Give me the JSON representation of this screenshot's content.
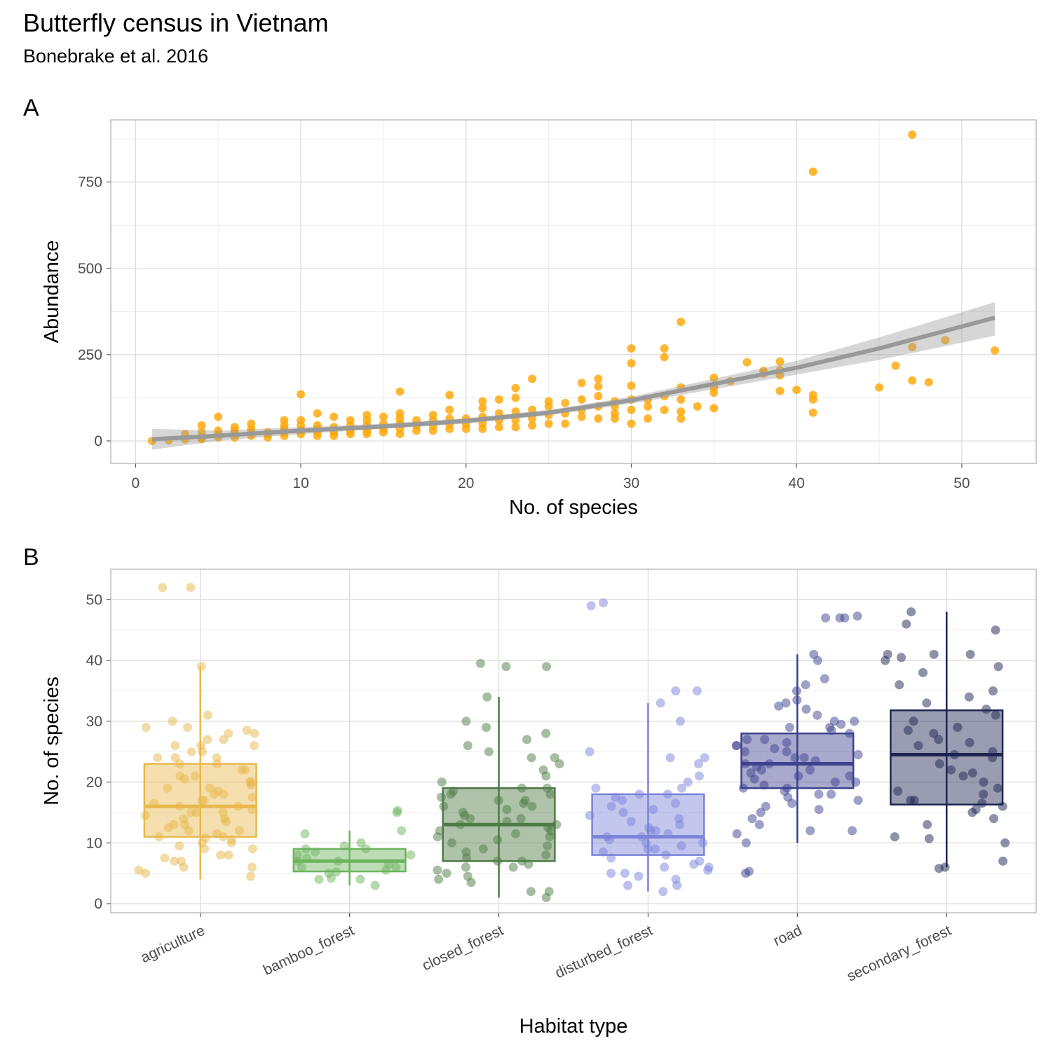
{
  "title": "Butterfly census in Vietnam",
  "subtitle": "Bonebrake et al. 2016",
  "chart_data": [
    {
      "panel": "A",
      "type": "scatter",
      "xlabel": "No. of species",
      "ylabel": "Abundance",
      "xlim": [
        -1.5,
        54.5
      ],
      "ylim": [
        -65,
        930
      ],
      "xticks": [
        0,
        10,
        20,
        30,
        40,
        50
      ],
      "yticks": [
        0,
        250,
        500,
        750
      ],
      "grid": true,
      "color": "#FFA500",
      "trend": {
        "type": "smooth",
        "x": [
          1,
          5,
          10,
          15,
          20,
          25,
          30,
          35,
          40,
          45,
          52
        ],
        "y": [
          5,
          15,
          30,
          42,
          58,
          82,
          118,
          165,
          212,
          268,
          357
        ],
        "ci_low": [
          -25,
          0,
          20,
          35,
          50,
          74,
          108,
          150,
          192,
          235,
          305
        ],
        "ci_high": [
          35,
          30,
          40,
          50,
          66,
          90,
          128,
          180,
          232,
          300,
          402
        ]
      },
      "points": [
        [
          1,
          0
        ],
        [
          2,
          2
        ],
        [
          3,
          5
        ],
        [
          3,
          20
        ],
        [
          4,
          5
        ],
        [
          4,
          10
        ],
        [
          4,
          25
        ],
        [
          4,
          45
        ],
        [
          5,
          10
        ],
        [
          5,
          20
        ],
        [
          5,
          30
        ],
        [
          5,
          70
        ],
        [
          6,
          10
        ],
        [
          6,
          20
        ],
        [
          6,
          30
        ],
        [
          6,
          40
        ],
        [
          7,
          15
        ],
        [
          7,
          25
        ],
        [
          7,
          35
        ],
        [
          7,
          50
        ],
        [
          8,
          10
        ],
        [
          8,
          20
        ],
        [
          8,
          25
        ],
        [
          9,
          15
        ],
        [
          9,
          25
        ],
        [
          9,
          35
        ],
        [
          9,
          45
        ],
        [
          9,
          60
        ],
        [
          10,
          20
        ],
        [
          10,
          30
        ],
        [
          10,
          45
        ],
        [
          10,
          60
        ],
        [
          10,
          135
        ],
        [
          11,
          15
        ],
        [
          11,
          25
        ],
        [
          11,
          35
        ],
        [
          11,
          45
        ],
        [
          11,
          80
        ],
        [
          12,
          15
        ],
        [
          12,
          25
        ],
        [
          12,
          40
        ],
        [
          12,
          70
        ],
        [
          13,
          20
        ],
        [
          13,
          30
        ],
        [
          13,
          45
        ],
        [
          13,
          60
        ],
        [
          14,
          20
        ],
        [
          14,
          30
        ],
        [
          14,
          45
        ],
        [
          14,
          60
        ],
        [
          14,
          75
        ],
        [
          15,
          25
        ],
        [
          15,
          35
        ],
        [
          15,
          50
        ],
        [
          15,
          70
        ],
        [
          16,
          20
        ],
        [
          16,
          35
        ],
        [
          16,
          50
        ],
        [
          16,
          65
        ],
        [
          16,
          80
        ],
        [
          16,
          143
        ],
        [
          17,
          30
        ],
        [
          17,
          45
        ],
        [
          17,
          60
        ],
        [
          18,
          30
        ],
        [
          18,
          45
        ],
        [
          18,
          60
        ],
        [
          18,
          75
        ],
        [
          19,
          35
        ],
        [
          19,
          50
        ],
        [
          19,
          65
        ],
        [
          19,
          90
        ],
        [
          19,
          133
        ],
        [
          20,
          35
        ],
        [
          20,
          50
        ],
        [
          20,
          65
        ],
        [
          21,
          35
        ],
        [
          21,
          50
        ],
        [
          21,
          70
        ],
        [
          21,
          95
        ],
        [
          21,
          115
        ],
        [
          22,
          40
        ],
        [
          22,
          60
        ],
        [
          22,
          80
        ],
        [
          22,
          120
        ],
        [
          23,
          40
        ],
        [
          23,
          60
        ],
        [
          23,
          85
        ],
        [
          23,
          125
        ],
        [
          23,
          153
        ],
        [
          24,
          45
        ],
        [
          24,
          65
        ],
        [
          24,
          90
        ],
        [
          24,
          180
        ],
        [
          25,
          50
        ],
        [
          25,
          75
        ],
        [
          25,
          100
        ],
        [
          25,
          115
        ],
        [
          26,
          50
        ],
        [
          26,
          80
        ],
        [
          26,
          110
        ],
        [
          27,
          70
        ],
        [
          27,
          90
        ],
        [
          27,
          120
        ],
        [
          27,
          168
        ],
        [
          28,
          65
        ],
        [
          28,
          100
        ],
        [
          28,
          130
        ],
        [
          28,
          158
        ],
        [
          28,
          180
        ],
        [
          29,
          65
        ],
        [
          29,
          80
        ],
        [
          29,
          100
        ],
        [
          29,
          115
        ],
        [
          30,
          50
        ],
        [
          30,
          90
        ],
        [
          30,
          120
        ],
        [
          30,
          160
        ],
        [
          30,
          225
        ],
        [
          30,
          268
        ],
        [
          31,
          65
        ],
        [
          31,
          100
        ],
        [
          31,
          120
        ],
        [
          32,
          90
        ],
        [
          32,
          130
        ],
        [
          32,
          243
        ],
        [
          32,
          268
        ],
        [
          33,
          65
        ],
        [
          33,
          85
        ],
        [
          33,
          120
        ],
        [
          33,
          155
        ],
        [
          33,
          345
        ],
        [
          34,
          100
        ],
        [
          35,
          95
        ],
        [
          35,
          140
        ],
        [
          35,
          155
        ],
        [
          35,
          183
        ],
        [
          36,
          173
        ],
        [
          37,
          228
        ],
        [
          38,
          195
        ],
        [
          38,
          203
        ],
        [
          39,
          145
        ],
        [
          39,
          190
        ],
        [
          39,
          205
        ],
        [
          39,
          230
        ],
        [
          40,
          148
        ],
        [
          41,
          82
        ],
        [
          41,
          120
        ],
        [
          41,
          133
        ],
        [
          41,
          780
        ],
        [
          45,
          155
        ],
        [
          46,
          218
        ],
        [
          47,
          175
        ],
        [
          47,
          272
        ],
        [
          47,
          887
        ],
        [
          48,
          170
        ],
        [
          49,
          292
        ],
        [
          52,
          262
        ]
      ]
    },
    {
      "panel": "B",
      "type": "box",
      "xlabel": "Habitat type",
      "ylabel": "No. of species",
      "ylim": [
        -1.5,
        55
      ],
      "yticks": [
        0,
        10,
        20,
        30,
        40,
        50
      ],
      "grid": true,
      "categories": [
        "agriculture",
        "bamboo_forest",
        "closed_forest",
        "disturbed_forest",
        "road",
        "secondary_forest"
      ],
      "boxes": [
        {
          "category": "agriculture",
          "color": "#E8B84B",
          "alpha": 0.4,
          "min": 4,
          "q1": 11,
          "median": 16,
          "q3": 23,
          "max": 39,
          "points": [
            5.5,
            6,
            7,
            7.5,
            8,
            9,
            9.5,
            10,
            10.5,
            10.8,
            11,
            11.5,
            12,
            12.5,
            13,
            13.5,
            14,
            14.5,
            15,
            15,
            15.5,
            16,
            16.5,
            17,
            17.5,
            18,
            18.5,
            19,
            19.5,
            20,
            20.5,
            21,
            22,
            23,
            24,
            24,
            25,
            26,
            26,
            27,
            28,
            28.5,
            29,
            30,
            31,
            39,
            52,
            52,
            4.5,
            5,
            6,
            7,
            8,
            9,
            10,
            11,
            12,
            13,
            14,
            15,
            16,
            17,
            18,
            19,
            20,
            21,
            22,
            23,
            24,
            25,
            26,
            27,
            28,
            29
          ]
        },
        {
          "category": "bamboo_forest",
          "color": "#6DB35E",
          "alpha": 0.4,
          "min": 3,
          "q1": 5.3,
          "median": 7,
          "q3": 9,
          "max": 12,
          "points": [
            3,
            4,
            4,
            4.2,
            5,
            5.2,
            5.5,
            6,
            6,
            6.5,
            7,
            7,
            7.5,
            8,
            8,
            8.5,
            9,
            9,
            9.5,
            10,
            11.5,
            12,
            15,
            15.3
          ]
        },
        {
          "category": "closed_forest",
          "color": "#4E7B45",
          "alpha": 0.4,
          "min": 1,
          "q1": 7,
          "median": 13,
          "q3": 19,
          "max": 34,
          "points": [
            1,
            2,
            2,
            3.5,
            4,
            4.5,
            5,
            5.5,
            6,
            6,
            6.5,
            7,
            7,
            7.5,
            8,
            8.5,
            9,
            9.5,
            10,
            10.5,
            11,
            11,
            11.5,
            12,
            12,
            12.5,
            13,
            13,
            13.5,
            14,
            14,
            14.5,
            15,
            15.5,
            16,
            16,
            16.5,
            17,
            17,
            17.5,
            18,
            18,
            18.5,
            19,
            19,
            20,
            21,
            22,
            23,
            24,
            24,
            25,
            26,
            27,
            28,
            29,
            30,
            34,
            39,
            39,
            39.5
          ]
        },
        {
          "category": "disturbed_forest",
          "color": "#7B83D9",
          "alpha": 0.4,
          "min": 2,
          "q1": 8,
          "median": 11,
          "q3": 18,
          "max": 33,
          "points": [
            2,
            3,
            3,
            4,
            4.5,
            5,
            5,
            5.5,
            6,
            6,
            6.5,
            7,
            7.5,
            8,
            8.5,
            9,
            9,
            9.5,
            10,
            10,
            10.5,
            11,
            11,
            11.5,
            12,
            12,
            12.5,
            13,
            13.5,
            14,
            14.5,
            15,
            15.5,
            16,
            16.5,
            17,
            17.5,
            18,
            18,
            19,
            19,
            20,
            21,
            23,
            24,
            24,
            25,
            30,
            33,
            35,
            35,
            49,
            49.5
          ]
        },
        {
          "category": "road",
          "color": "#3D418F",
          "alpha": 0.4,
          "min": 10,
          "q1": 19,
          "median": 23,
          "q3": 28,
          "max": 41,
          "points": [
            5,
            5.3,
            10,
            11.5,
            12,
            12,
            13,
            14,
            15,
            15.5,
            16,
            16.5,
            17,
            17.5,
            18,
            18,
            18.5,
            19,
            19,
            19.5,
            20,
            20,
            20.5,
            21,
            21,
            21.5,
            22,
            22,
            22.5,
            23,
            23,
            23.5,
            24,
            24,
            24.5,
            25,
            25,
            25.5,
            26,
            26,
            26.5,
            27,
            27,
            28,
            28.5,
            29,
            29,
            29.5,
            30,
            30,
            31,
            32,
            32.5,
            33,
            33.5,
            35,
            36,
            37,
            40,
            41,
            47,
            47,
            47,
            47.3
          ]
        },
        {
          "category": "secondary_forest",
          "color": "#1E2452",
          "alpha": 0.4,
          "min": 6,
          "q1": 16.3,
          "median": 24.5,
          "q3": 31.8,
          "max": 48,
          "points": [
            5.8,
            6,
            7,
            10,
            10.7,
            11,
            13,
            14,
            15,
            15.5,
            16,
            16.5,
            17,
            17,
            18,
            18.5,
            19,
            20,
            21,
            21.5,
            22,
            23,
            24,
            24.5,
            25,
            26,
            26.5,
            27,
            28,
            28.5,
            29,
            30,
            31,
            32,
            33,
            34,
            35,
            36,
            38,
            39,
            40,
            40.5,
            41,
            41,
            41,
            45,
            46,
            48
          ]
        }
      ]
    }
  ],
  "panel_labels": [
    "A",
    "B"
  ]
}
